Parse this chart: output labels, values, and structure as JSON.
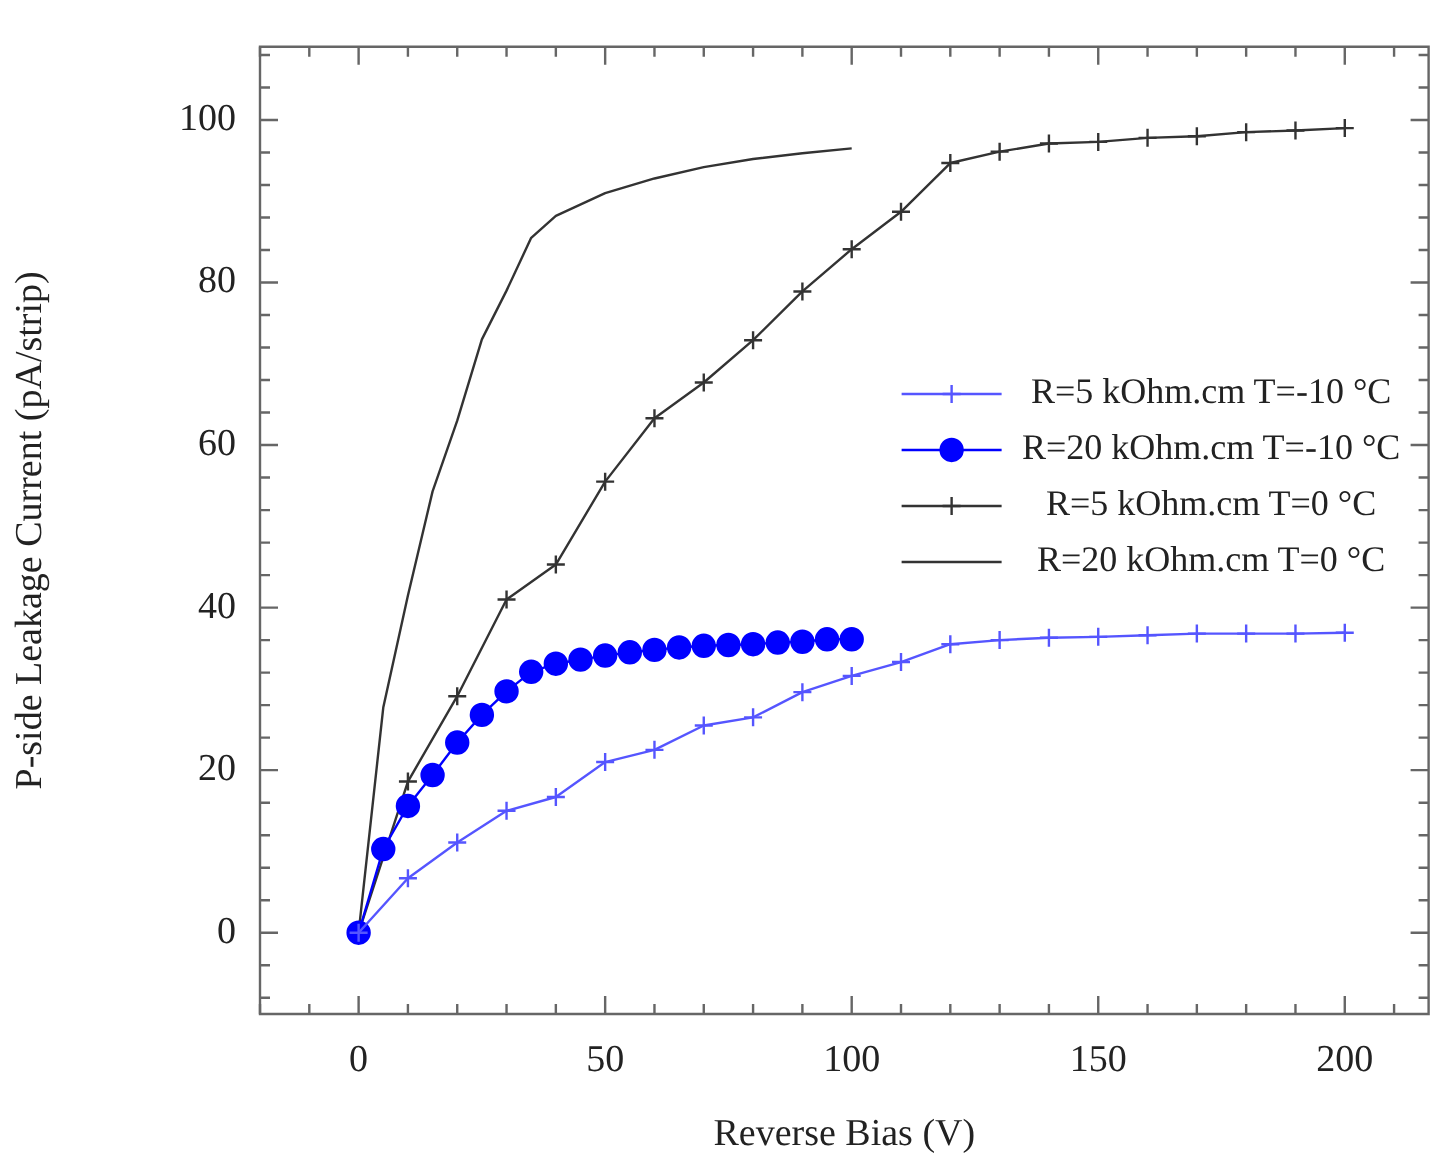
{
  "chart_data": {
    "type": "line",
    "xlabel": "Reverse Bias (V)",
    "ylabel": "P-side Leakage Current (pA/strip)",
    "legend": "right",
    "grid": false,
    "xlim": [
      -20,
      217
    ],
    "ylim": [
      -10,
      109
    ],
    "xticks": [
      {
        "value": -20,
        "label": null
      },
      {
        "value": -10,
        "label": null
      },
      0,
      {
        "value": 10,
        "label": null
      },
      {
        "value": 20,
        "label": null
      },
      {
        "value": 30,
        "label": null
      },
      {
        "value": 40,
        "label": null
      },
      50,
      {
        "value": 60,
        "label": null
      },
      {
        "value": 70,
        "label": null
      },
      {
        "value": 80,
        "label": null
      },
      {
        "value": 90,
        "label": null
      },
      100,
      {
        "value": 110,
        "label": null
      },
      {
        "value": 120,
        "label": null
      },
      {
        "value": 130,
        "label": null
      },
      {
        "value": 140,
        "label": null
      },
      150,
      {
        "value": 160,
        "label": null
      },
      {
        "value": 170,
        "label": null
      },
      {
        "value": 180,
        "label": null
      },
      {
        "value": 190,
        "label": null
      },
      200,
      {
        "value": 210,
        "label": null
      }
    ],
    "yticks": [
      {
        "value": -8,
        "label": null
      },
      {
        "value": -4,
        "label": null
      },
      0,
      {
        "value": 4,
        "label": null
      },
      {
        "value": 8,
        "label": null
      },
      {
        "value": 12,
        "label": null
      },
      {
        "value": 16,
        "label": null
      },
      20,
      {
        "value": 24,
        "label": null
      },
      {
        "value": 28,
        "label": null
      },
      {
        "value": 32,
        "label": null
      },
      {
        "value": 36,
        "label": null
      },
      40,
      {
        "value": 44,
        "label": null
      },
      {
        "value": 48,
        "label": null
      },
      {
        "value": 52,
        "label": null
      },
      {
        "value": 56,
        "label": null
      },
      60,
      {
        "value": 64,
        "label": null
      },
      {
        "value": 68,
        "label": null
      },
      {
        "value": 72,
        "label": null
      },
      {
        "value": 76,
        "label": null
      },
      80,
      {
        "value": 84,
        "label": null
      },
      {
        "value": 88,
        "label": null
      },
      {
        "value": 92,
        "label": null
      },
      {
        "value": 96,
        "label": null
      },
      100,
      {
        "value": 104,
        "label": null
      },
      {
        "value": 108,
        "label": null
      }
    ],
    "series": [
      {
        "name": "R=5 kOhm.cm T=-10 °C",
        "color": "#5555ff",
        "marker": "cross",
        "x": [
          0,
          10,
          20,
          30,
          40,
          50,
          60,
          70,
          80,
          90,
          100,
          110,
          120,
          130,
          140,
          150,
          160,
          170,
          180,
          190,
          200
        ],
        "values": [
          0,
          6.7,
          11.1,
          15.0,
          16.7,
          21.0,
          22.5,
          25.5,
          26.5,
          29.6,
          31.6,
          33.3,
          35.5,
          36.0,
          36.3,
          36.4,
          36.6,
          36.8,
          36.8,
          36.8,
          36.9
        ]
      },
      {
        "name": "R=20 kOhm.cm T=-10 °C",
        "color": "#0000ff",
        "marker": "circle",
        "x": [
          0,
          5,
          10,
          15,
          20,
          25,
          30,
          35,
          40,
          45,
          50,
          55,
          60,
          65,
          70,
          75,
          80,
          85,
          90,
          95,
          100
        ],
        "values": [
          0,
          10.3,
          15.6,
          19.4,
          23.4,
          26.8,
          29.7,
          32.1,
          33.1,
          33.6,
          34.1,
          34.5,
          34.8,
          35.1,
          35.3,
          35.4,
          35.5,
          35.7,
          35.8,
          36.1,
          36.1
        ]
      },
      {
        "name": "R=5 kOhm.cm T=0 °C",
        "color": "#333333",
        "marker": "cross",
        "x": [
          0,
          10,
          20,
          30,
          40,
          50,
          60,
          70,
          80,
          90,
          100,
          110,
          120,
          130,
          140,
          150,
          160,
          170,
          180,
          190,
          200
        ],
        "values": [
          0,
          18.6,
          29.1,
          41.0,
          45.3,
          55.5,
          63.3,
          67.7,
          72.9,
          78.9,
          84.1,
          88.7,
          94.7,
          96.1,
          97.1,
          97.3,
          97.8,
          98.0,
          98.5,
          98.7,
          99.0
        ]
      },
      {
        "name": "R=20 kOhm.cm T=0 °C",
        "color": "#333333",
        "marker": "none",
        "x": [
          0,
          5,
          10,
          15,
          20,
          25,
          30,
          35,
          40,
          50,
          60,
          70,
          80,
          90,
          100
        ],
        "values": [
          0,
          27.7,
          41.5,
          54.3,
          63,
          73,
          79,
          85.5,
          88.2,
          91,
          92.8,
          94.2,
          95.2,
          95.9,
          96.5
        ]
      }
    ]
  }
}
